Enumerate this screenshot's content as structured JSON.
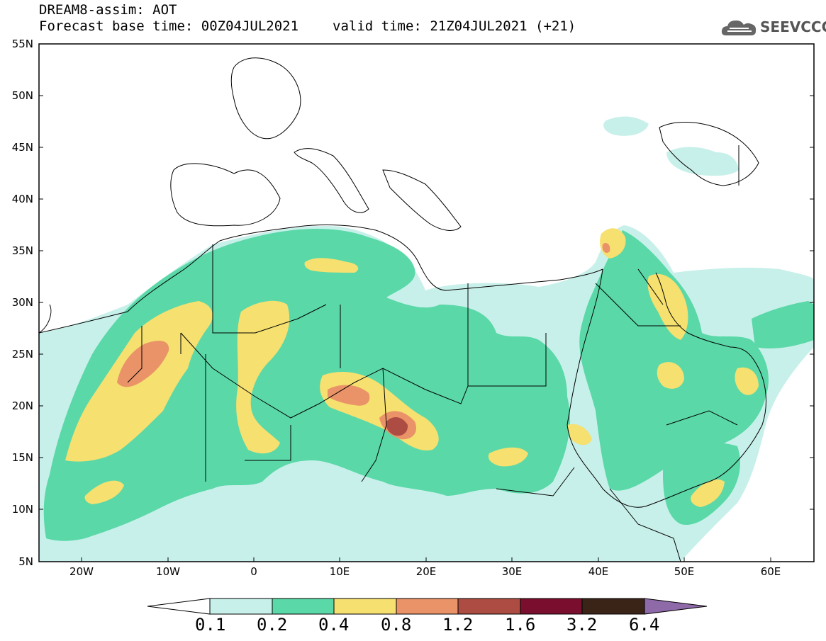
{
  "header": {
    "title_line1": "DREAM8-assim: AOT",
    "base_time": "Forecast base time: 00Z04JUL2021",
    "valid_time": "valid time: 21Z04JUL2021 (+21)"
  },
  "logo": {
    "text": "SEEVCCC",
    "icon": "cloud-icon"
  },
  "map": {
    "lat_labels": [
      "55N",
      "50N",
      "45N",
      "40N",
      "35N",
      "30N",
      "25N",
      "20N",
      "15N",
      "10N",
      "5N"
    ],
    "lon_labels": [
      "20W",
      "10W",
      "0",
      "10E",
      "20E",
      "30E",
      "40E",
      "50E",
      "60E"
    ]
  },
  "colorbar": {
    "levels": [
      "0.1",
      "0.2",
      "0.4",
      "0.8",
      "1.2",
      "1.6",
      "3.2",
      "6.4"
    ],
    "colors": [
      "#ffffff",
      "#c8f0ea",
      "#5ad8a8",
      "#f5e070",
      "#ea9368",
      "#ad4c42",
      "#7a0e2e",
      "#3a2418",
      "#8e6aa8"
    ]
  },
  "colors": {
    "c1": "#c8f0ea",
    "c2": "#5ad8a8",
    "c3": "#f5e070",
    "c4": "#ea9368",
    "c5": "#ad4c42",
    "c6": "#7a0e2e"
  }
}
